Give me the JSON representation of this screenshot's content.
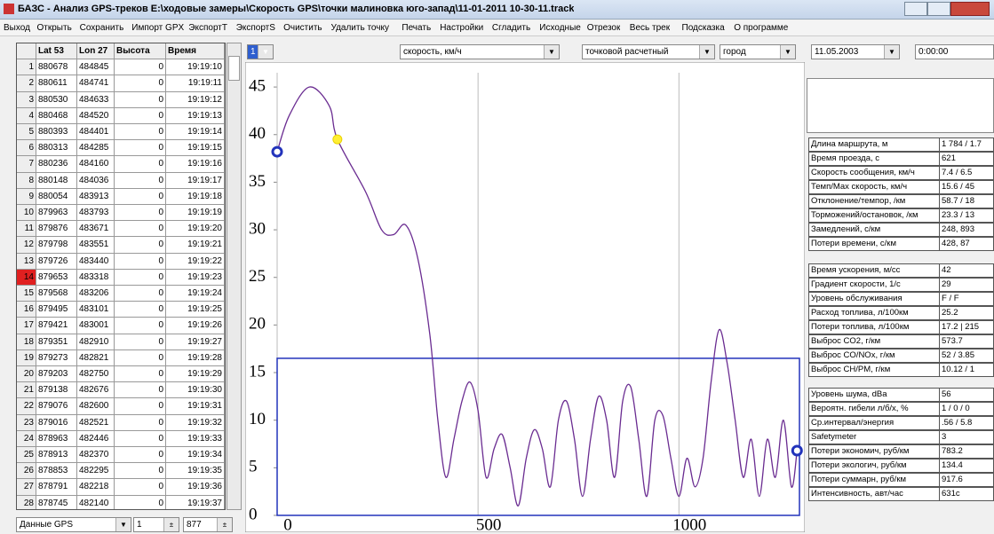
{
  "window": {
    "title": "БАЗС - Анализ GPS-треков  E:\\ходовые замеры\\Скорость GPS\\точки малиновка юго-запад\\11-01-2011 10-30-11.track"
  },
  "menu": [
    "Выход",
    "Открыть",
    "Сохранить",
    "Импорт GPX",
    "ЭкспортT",
    "ЭкспортS",
    "Очистить",
    "Удалить точку",
    "Печать",
    "Настройки",
    "Сгладить",
    "Исходные",
    "Отрезок",
    "Весь трек",
    "Подсказка",
    "О программе"
  ],
  "table": {
    "columns": [
      "Lat 53",
      "Lon 27",
      "Высота",
      "Время"
    ],
    "rows": [
      [
        1,
        880678,
        484845,
        0,
        "19:19:10"
      ],
      [
        2,
        880611,
        484741,
        0,
        "19:19:11"
      ],
      [
        3,
        880530,
        484633,
        0,
        "19:19:12"
      ],
      [
        4,
        880468,
        484520,
        0,
        "19:19:13"
      ],
      [
        5,
        880393,
        484401,
        0,
        "19:19:14"
      ],
      [
        6,
        880313,
        484285,
        0,
        "19:19:15"
      ],
      [
        7,
        880236,
        484160,
        0,
        "19:19:16"
      ],
      [
        8,
        880148,
        484036,
        0,
        "19:19:17"
      ],
      [
        9,
        880054,
        483913,
        0,
        "19:19:18"
      ],
      [
        10,
        879963,
        483793,
        0,
        "19:19:19"
      ],
      [
        11,
        879876,
        483671,
        0,
        "19:19:20"
      ],
      [
        12,
        879798,
        483551,
        0,
        "19:19:21"
      ],
      [
        13,
        879726,
        483440,
        0,
        "19:19:22"
      ],
      [
        14,
        879653,
        483318,
        0,
        "19:19:23"
      ],
      [
        15,
        879568,
        483206,
        0,
        "19:19:24"
      ],
      [
        16,
        879495,
        483101,
        0,
        "19:19:25"
      ],
      [
        17,
        879421,
        483001,
        0,
        "19:19:26"
      ],
      [
        18,
        879351,
        482910,
        0,
        "19:19:27"
      ],
      [
        19,
        879273,
        482821,
        0,
        "19:19:28"
      ],
      [
        20,
        879203,
        482750,
        0,
        "19:19:29"
      ],
      [
        21,
        879138,
        482676,
        0,
        "19:19:30"
      ],
      [
        22,
        879076,
        482600,
        0,
        "19:19:31"
      ],
      [
        23,
        879016,
        482521,
        0,
        "19:19:32"
      ],
      [
        24,
        878963,
        482446,
        0,
        "19:19:33"
      ],
      [
        25,
        878913,
        482370,
        0,
        "19:19:34"
      ],
      [
        26,
        878853,
        482295,
        0,
        "19:19:35"
      ],
      [
        27,
        878791,
        482218,
        0,
        "19:19:36"
      ],
      [
        28,
        878745,
        482140,
        0,
        "19:19:37"
      ]
    ],
    "selected_row": 13
  },
  "controls": {
    "source": "Данные GPS",
    "from": 1,
    "to": 877
  },
  "selectors": [
    "1 ст",
    "скорость, км/ч",
    "точковой расчетный",
    "город"
  ],
  "date": "11.05.2003",
  "time": "0:00:00",
  "stats": [
    [
      [
        "Длина маршрута, м",
        "1 784 / 1.7"
      ],
      [
        "Время проезда, с",
        "621"
      ],
      [
        "Скорость сообщения, км/ч",
        "7.4 / 6.5"
      ],
      [
        "Темп/Мах скорость, км/ч",
        "15.6 / 45"
      ],
      [
        "Отклонение/темпор, /км",
        "58.7 / 18"
      ],
      [
        "Торможений/остановок, /км",
        "23.3 / 13"
      ],
      [
        "Замедлений, с/км",
        "248, 893"
      ],
      [
        "Потери времени, с/км",
        "428, 87"
      ]
    ],
    [
      [
        "Время ускорения, м/сс",
        "42"
      ],
      [
        "Градиент скорости, 1/с",
        "29"
      ],
      [
        "Уровень обслуживания",
        "F / F"
      ],
      [
        "Расход топлива, л/100км",
        "25.2"
      ],
      [
        "Потери топлива, л/100км",
        "17.2 | 215"
      ],
      [
        "Выброс CO2, г/км",
        "573.7"
      ],
      [
        "Выброс CO/NOx, г/км",
        "52 / 3.85"
      ],
      [
        "Выброс CH/PM, г/км",
        "10.12 / 1"
      ]
    ],
    [
      [
        "Уровень шума, dBa",
        "56"
      ],
      [
        "Вероятн. гибели л/б/х, %",
        "1 / 0 / 0"
      ],
      [
        "Ср.интервал/энергия",
        ".56 / 5.8"
      ],
      [
        "Safetymeter",
        "3"
      ],
      [
        "Потери экономич, руб/км",
        "783.2"
      ],
      [
        "Потери экологич, руб/км",
        "134.4"
      ],
      [
        "Потери суммарн, руб/км",
        "917.6"
      ],
      [
        "Интенсивность, авт/час",
        "631c"
      ]
    ]
  ],
  "chart": {
    "type": "line",
    "x": [
      0,
      30,
      80,
      130,
      150,
      220,
      260,
      290,
      320,
      350,
      380,
      400,
      420,
      440,
      460,
      480,
      500,
      520,
      540,
      560,
      580,
      600,
      620,
      640,
      660,
      680,
      700,
      720,
      740,
      760,
      780,
      800,
      820,
      840,
      860,
      880,
      900,
      920,
      940,
      960,
      980,
      1000,
      1020,
      1040,
      1060,
      1080,
      1100,
      1120,
      1140,
      1160,
      1180,
      1200,
      1220,
      1240,
      1260,
      1280,
      1294
    ],
    "values": [
      38.2,
      42,
      45,
      43,
      39.5,
      34,
      30,
      29.5,
      30.5,
      27,
      19,
      10,
      4,
      8,
      12,
      14,
      11,
      4,
      7,
      8.5,
      5,
      1,
      6,
      9,
      7,
      3,
      10,
      12,
      8,
      2,
      8,
      12.5,
      10,
      4,
      12,
      13.5,
      8,
      2,
      10,
      10.5,
      6,
      2,
      6,
      3,
      6,
      14,
      19.5,
      16,
      10,
      4,
      8,
      2,
      8,
      4,
      10,
      3,
      6.8
    ],
    "color": "#6a2c91",
    "cursor": 4,
    "threshold": 16.5,
    "threshold_color": "#2233bb",
    "xlim": [
      0,
      1300
    ],
    "ylim": [
      0,
      46.5
    ],
    "xticks": [
      0,
      500,
      1000
    ],
    "yticks": [
      0,
      5,
      10,
      15,
      20,
      25,
      30,
      35,
      40,
      45
    ],
    "grid": "x"
  }
}
